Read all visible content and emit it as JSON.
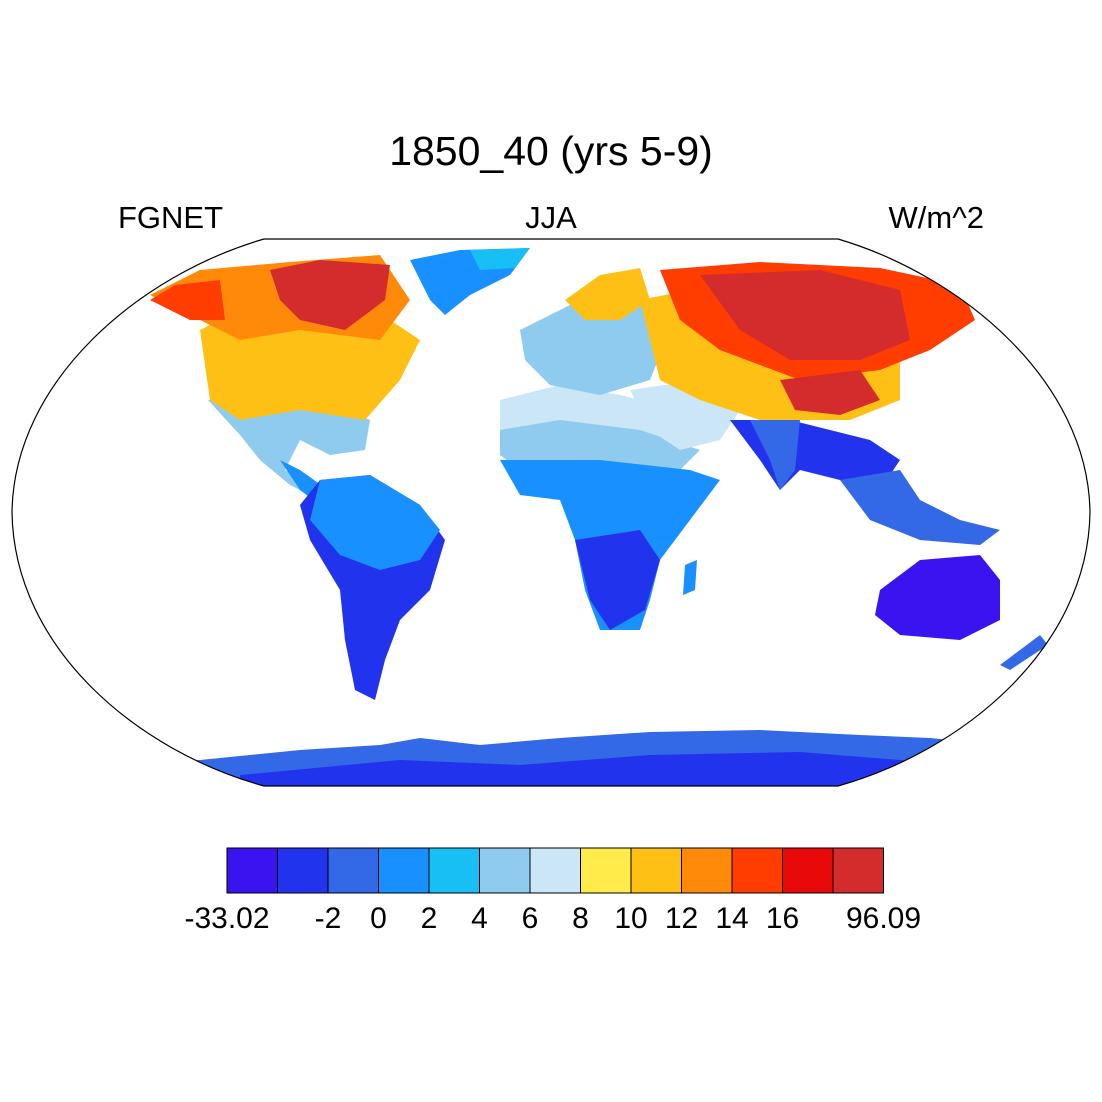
{
  "title": "1850_40 (yrs 5-9)",
  "left_subtitle": "FGNET",
  "center_subtitle": "JJA",
  "right_subtitle": "W/m^2",
  "colorbar": {
    "colors": [
      "#3b12f0",
      "#2233ee",
      "#3368e6",
      "#1990ff",
      "#18bff5",
      "#8ecbef",
      "#cbe6f6",
      "#ffeb4a",
      "#ffc015",
      "#ff8a0a",
      "#ff3d00",
      "#e80a0a",
      "#d42c2c"
    ],
    "labels": [
      "-33.02",
      "-2",
      "0",
      "2",
      "4",
      "6",
      "8",
      "10",
      "12",
      "14",
      "16",
      "96.09"
    ],
    "label_boundaries": [
      0,
      2,
      3,
      4,
      5,
      6,
      7,
      8,
      9,
      10,
      11,
      13
    ]
  },
  "land_colors": {
    "background_ocean": "#ffffff",
    "coastline": "#000000"
  }
}
